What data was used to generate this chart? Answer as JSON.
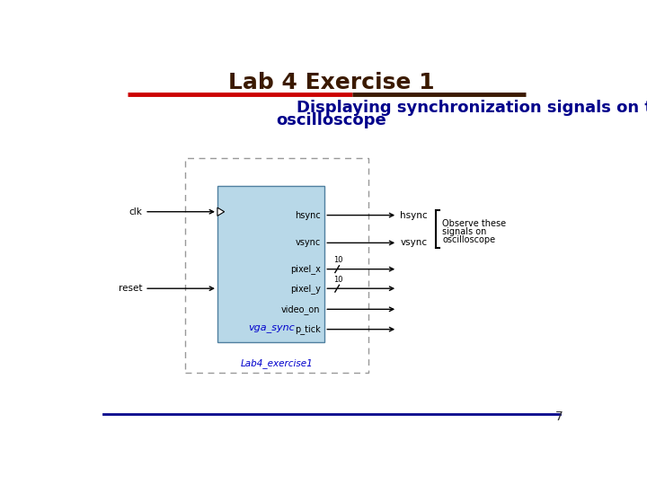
{
  "title": "Lab 4 Exercise 1",
  "subtitle_line1": "Displaying synchronization signals on the",
  "subtitle_line2": "oscilloscope",
  "title_color": "#3B1A00",
  "subtitle_color": "#00008B",
  "title_fontsize": 18,
  "subtitle_fontsize": 13,
  "separator_color_left": "#CC0000",
  "separator_color_right": "#3B1A00",
  "bottom_line_color": "#00008B",
  "page_number": "7",
  "background_color": "#FFFFFF",
  "module_box_color": "#B8D8E8",
  "module_box_edge": "#5080A0",
  "module_label": "vga_sync",
  "module_label_color": "#0000CC",
  "outer_label": "Lab4_exercise1",
  "outer_label_color": "#0000CC",
  "ports_out": [
    "hsync",
    "vsync",
    "pixel_x",
    "pixel_y",
    "video_on",
    "p_tick"
  ],
  "observe_text": [
    "Observe these",
    "signals on",
    "oscilloscope"
  ],
  "bus_width": "10",
  "diagram_font_size": 7,
  "arrow_color": "#000000"
}
